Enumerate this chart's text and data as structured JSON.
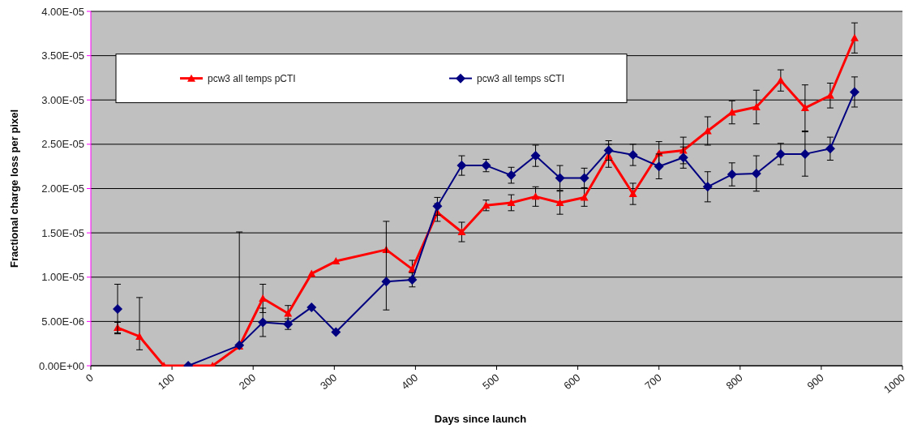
{
  "chart_data": {
    "type": "line",
    "xlabel": "Days since launch",
    "ylabel": "Fractional charge loss per pixel",
    "xlim": [
      0,
      1000
    ],
    "xticks": [
      0,
      100,
      200,
      300,
      400,
      500,
      600,
      700,
      800,
      900,
      1000
    ],
    "ylim": [
      0,
      4e-05
    ],
    "yticks": [
      {
        "value": 0,
        "label": "0.00E+00"
      },
      {
        "value": 5e-06,
        "label": "5.00E-06"
      },
      {
        "value": 1e-05,
        "label": "1.00E-05"
      },
      {
        "value": 1.5e-05,
        "label": "1.50E-05"
      },
      {
        "value": 2e-05,
        "label": "2.00E-05"
      },
      {
        "value": 2.5e-05,
        "label": "2.50E-05"
      },
      {
        "value": 3e-05,
        "label": "3.00E-05"
      },
      {
        "value": 3.5e-05,
        "label": "3.50E-05"
      },
      {
        "value": 4e-05,
        "label": "4.00E-05"
      }
    ],
    "grid": "y",
    "legend": "top",
    "line_style": "solid",
    "series": [
      {
        "name": "pcw3 all temps pCTI",
        "color": "#ff0000",
        "marker": "triangle",
        "x": [
          33,
          60,
          90,
          120,
          150,
          183,
          212,
          243,
          272,
          302,
          364,
          396,
          427,
          457,
          487,
          518,
          548,
          578,
          608,
          638,
          668,
          700,
          730,
          760,
          790,
          820,
          850,
          880,
          911,
          941
        ],
        "values": [
          4.3e-06,
          3.3e-06,
          0,
          0,
          0,
          2.2e-06,
          7.6e-06,
          5.9e-06,
          1.04e-05,
          1.18e-05,
          1.31e-05,
          1.09e-05,
          1.73e-05,
          1.51e-05,
          1.81e-05,
          1.84e-05,
          1.91e-05,
          1.84e-05,
          1.9e-05,
          2.37e-05,
          1.94e-05,
          2.4e-05,
          2.43e-05,
          2.65e-05,
          2.86e-05,
          2.92e-05,
          3.22e-05,
          2.91e-05,
          3.05e-05,
          3.7e-05
        ],
        "errors": [
          6e-07,
          [
            1.8e-06,
            7.7e-06
          ],
          null,
          null,
          null,
          [
            2.2e-06,
            1.51e-05
          ],
          1.6e-06,
          9e-07,
          null,
          null,
          null,
          1e-06,
          1e-06,
          1.1e-06,
          6e-07,
          9e-07,
          1.1e-06,
          1.3e-06,
          1e-06,
          1.3e-06,
          1.2e-06,
          1.3e-06,
          1.5e-06,
          1.6e-06,
          1.3e-06,
          1.9e-06,
          1.2e-06,
          2.6e-06,
          1.4e-06,
          1.7e-06
        ]
      },
      {
        "name": "pcw3 all temps sCTI",
        "color": "#000080",
        "marker": "diamond",
        "x": [
          33,
          60,
          90,
          120,
          183,
          212,
          243,
          272,
          302,
          364,
          396,
          427,
          457,
          487,
          518,
          548,
          578,
          608,
          638,
          668,
          700,
          730,
          760,
          790,
          820,
          850,
          880,
          911,
          941
        ],
        "values": [
          6.4e-06,
          null,
          null,
          0,
          2.3e-06,
          4.9e-06,
          4.7e-06,
          6.6e-06,
          3.8e-06,
          9.5e-06,
          9.7e-06,
          1.8e-05,
          2.26e-05,
          2.26e-05,
          2.15e-05,
          2.37e-05,
          2.12e-05,
          2.12e-05,
          2.43e-05,
          2.38e-05,
          2.25e-05,
          2.35e-05,
          2.02e-05,
          2.16e-05,
          2.17e-05,
          2.39e-05,
          2.39e-05,
          2.45e-05,
          3.09e-05
        ],
        "errors": [
          2.8e-06,
          null,
          null,
          null,
          null,
          1.6e-06,
          6e-07,
          null,
          null,
          [
            6.3e-06,
            1.63e-05
          ],
          8e-07,
          1e-06,
          1.1e-06,
          7e-07,
          9e-07,
          1.2e-06,
          1.4e-06,
          1.1e-06,
          1.1e-06,
          1.2e-06,
          1.4e-06,
          1.2e-06,
          1.7e-06,
          1.3e-06,
          2e-06,
          1.2e-06,
          2.5e-06,
          1.3e-06,
          1.7e-06
        ]
      }
    ]
  }
}
